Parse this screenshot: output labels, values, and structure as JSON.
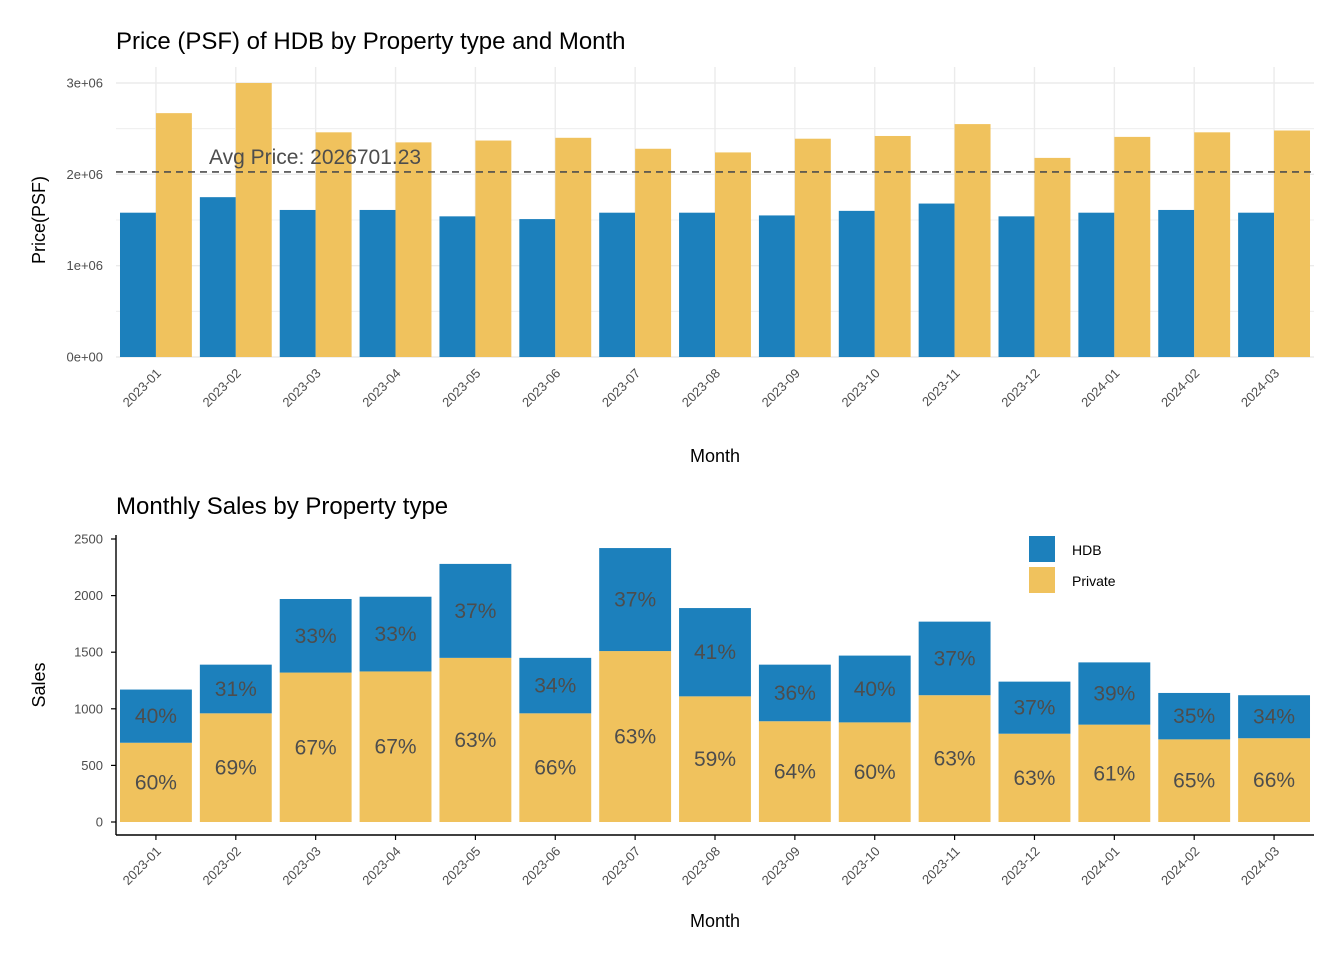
{
  "colors": {
    "hdb": "#1c80bc",
    "private": "#f0c25d",
    "grid": "#ebebeb",
    "avg_line": "#4d4d4d",
    "label": "#4d4d4d"
  },
  "chart_data": [
    {
      "type": "bar",
      "title": "Price (PSF) of HDB by Property type and Month",
      "xlabel": "Month",
      "ylabel": "Price(PSF)",
      "ylim": [
        0,
        3000000
      ],
      "yticks": [
        "0e+00",
        "1e+06",
        "2e+06",
        "3e+06"
      ],
      "grid": true,
      "categories": [
        "2023-01",
        "2023-02",
        "2023-03",
        "2023-04",
        "2023-05",
        "2023-06",
        "2023-07",
        "2023-08",
        "2023-09",
        "2023-10",
        "2023-11",
        "2023-12",
        "2024-01",
        "2024-02",
        "2024-03"
      ],
      "series": [
        {
          "key": "hdb",
          "values": [
            1580000,
            1750000,
            1610000,
            1610000,
            1540000,
            1510000,
            1580000,
            1580000,
            1550000,
            1600000,
            1680000,
            1540000,
            1580000,
            1610000,
            1580000
          ]
        },
        {
          "key": "private",
          "values": [
            2670000,
            3000000,
            2460000,
            2350000,
            2370000,
            2400000,
            2280000,
            2240000,
            2390000,
            2420000,
            2550000,
            2180000,
            2410000,
            2460000,
            2480000
          ]
        }
      ],
      "reference_line": {
        "value": 2026701.23,
        "label": "Avg Price: 2026701.23",
        "style": "dashed"
      }
    },
    {
      "type": "bar",
      "stacked": true,
      "title": "Monthly Sales by Property type",
      "xlabel": "Month",
      "ylabel": "Sales",
      "ylim": [
        0,
        2500
      ],
      "yticks": [
        "0",
        "500",
        "1000",
        "1500",
        "2000",
        "2500"
      ],
      "grid": false,
      "legend_position": "top-right",
      "legend": [
        "HDB",
        "Private"
      ],
      "categories": [
        "2023-01",
        "2023-02",
        "2023-03",
        "2023-04",
        "2023-05",
        "2023-06",
        "2023-07",
        "2023-08",
        "2023-09",
        "2023-10",
        "2023-11",
        "2023-12",
        "2024-01",
        "2024-02",
        "2024-03"
      ],
      "series": [
        {
          "name": "HDB",
          "key": "hdb",
          "values": [
            470,
            430,
            650,
            660,
            830,
            490,
            910,
            780,
            500,
            590,
            650,
            460,
            550,
            410,
            380
          ],
          "labels": [
            "40%",
            "31%",
            "33%",
            "33%",
            "37%",
            "34%",
            "37%",
            "41%",
            "36%",
            "40%",
            "37%",
            "37%",
            "39%",
            "35%",
            "34%"
          ]
        },
        {
          "name": "Private",
          "key": "private",
          "values": [
            700,
            960,
            1320,
            1330,
            1450,
            960,
            1510,
            1110,
            890,
            880,
            1120,
            780,
            860,
            730,
            740
          ],
          "labels": [
            "60%",
            "69%",
            "67%",
            "67%",
            "63%",
            "66%",
            "63%",
            "59%",
            "64%",
            "60%",
            "63%",
            "63%",
            "61%",
            "65%",
            "66%"
          ]
        }
      ]
    }
  ]
}
